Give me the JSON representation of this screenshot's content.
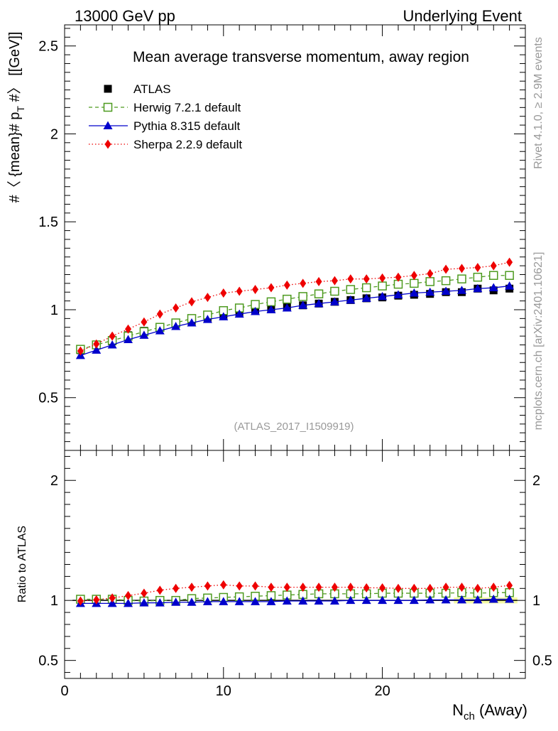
{
  "header": {
    "left": "13000 GeV pp",
    "right": "Underlying Event"
  },
  "side_labels": {
    "rivet": "Rivet 4.1.0, ≥ 2.9M events",
    "mcplots": "mcplots.cern.ch [arXiv:2401.10621]"
  },
  "chart_data": {
    "type": "scatter",
    "title": "Mean average transverse momentum, away region",
    "analysis_id": "(ATLAS_2017_I1509919)",
    "xlabel": "N_ch (Away)",
    "xlabel_main": "N",
    "xlabel_sub": "ch",
    "xlabel_suffix": " (Away)",
    "ylabel": "#〈{mean}# p_T #〉 [[GeV]]",
    "ylabel_main": "#〈 {mean}# p",
    "ylabel_sub": "T",
    "ylabel_suffix": " #〉 [[GeV]]",
    "xlim": [
      0,
      29
    ],
    "ylim": [
      0.2,
      2.62
    ],
    "x_ticks": [
      0,
      10,
      20
    ],
    "x_tick_labels": [
      "0",
      "10",
      "20"
    ],
    "y_ticks": [
      0.5,
      1,
      1.5,
      2,
      2.5
    ],
    "y_tick_labels": [
      "0.5",
      "1",
      "1.5",
      "2",
      "2.5"
    ],
    "ratio_panel": {
      "ylabel": "Ratio to ATLAS",
      "ylim": [
        0.35,
        2.25
      ],
      "y_ticks": [
        0.5,
        1,
        2
      ],
      "y_tick_labels": [
        "0.5",
        "1",
        "2"
      ]
    },
    "x": [
      1,
      2,
      3,
      4,
      5,
      6,
      7,
      8,
      9,
      10,
      11,
      12,
      13,
      14,
      15,
      16,
      17,
      18,
      19,
      20,
      21,
      22,
      23,
      24,
      25,
      26,
      27,
      28
    ],
    "series": [
      {
        "name": "ATLAS",
        "style": "data",
        "color": "#000000",
        "values": [
          0.77,
          0.8,
          0.82,
          0.855,
          0.88,
          0.9,
          0.92,
          0.935,
          0.95,
          0.97,
          0.985,
          1.0,
          1.005,
          1.015,
          1.025,
          1.035,
          1.045,
          1.055,
          1.065,
          1.07,
          1.08,
          1.085,
          1.09,
          1.1,
          1.1,
          1.12,
          1.11,
          1.12
        ]
      },
      {
        "name": "Herwig 7.2.1 default",
        "style": "open-square-dashed",
        "color": "#4d9a1f",
        "values": [
          0.775,
          0.8,
          0.825,
          0.85,
          0.875,
          0.9,
          0.925,
          0.95,
          0.97,
          0.995,
          1.01,
          1.03,
          1.045,
          1.06,
          1.075,
          1.09,
          1.105,
          1.115,
          1.125,
          1.135,
          1.145,
          1.15,
          1.16,
          1.165,
          1.175,
          1.185,
          1.195,
          1.195
        ],
        "ratio": [
          1.01,
          1.01,
          1.01,
          1.0,
          0.995,
          1.0,
          1.0,
          1.015,
          1.02,
          1.025,
          1.03,
          1.035,
          1.04,
          1.045,
          1.05,
          1.055,
          1.055,
          1.055,
          1.055,
          1.06,
          1.06,
          1.06,
          1.06,
          1.06,
          1.065,
          1.06,
          1.065,
          1.065
        ]
      },
      {
        "name": "Pythia 8.315 default",
        "style": "triangle-solid",
        "color": "#0000cc",
        "values": [
          0.74,
          0.77,
          0.8,
          0.83,
          0.855,
          0.88,
          0.905,
          0.925,
          0.945,
          0.96,
          0.975,
          0.99,
          1.0,
          1.01,
          1.025,
          1.035,
          1.045,
          1.055,
          1.065,
          1.075,
          1.085,
          1.095,
          1.1,
          1.105,
          1.11,
          1.12,
          1.125,
          1.135
        ],
        "ratio": [
          0.975,
          0.975,
          0.975,
          0.975,
          0.98,
          0.98,
          0.985,
          0.985,
          0.99,
          0.99,
          0.99,
          0.99,
          0.99,
          0.995,
          0.995,
          0.995,
          0.995,
          1.0,
          1.0,
          1.0,
          1.0,
          1.0,
          1.005,
          1.005,
          1.005,
          1.005,
          1.01,
          1.01
        ]
      },
      {
        "name": "Sherpa 2.2.9 default",
        "style": "diamond-dotted",
        "color": "#ee0000",
        "values": [
          0.765,
          0.805,
          0.85,
          0.89,
          0.93,
          0.975,
          1.01,
          1.045,
          1.07,
          1.095,
          1.105,
          1.115,
          1.125,
          1.14,
          1.15,
          1.16,
          1.165,
          1.175,
          1.175,
          1.18,
          1.185,
          1.195,
          1.205,
          1.23,
          1.235,
          1.24,
          1.25,
          1.27
        ],
        "ratio": [
          0.995,
          1.005,
          1.02,
          1.04,
          1.06,
          1.085,
          1.1,
          1.11,
          1.12,
          1.13,
          1.12,
          1.12,
          1.11,
          1.11,
          1.11,
          1.11,
          1.11,
          1.11,
          1.105,
          1.105,
          1.1,
          1.1,
          1.1,
          1.11,
          1.11,
          1.1,
          1.11,
          1.125
        ]
      }
    ]
  }
}
